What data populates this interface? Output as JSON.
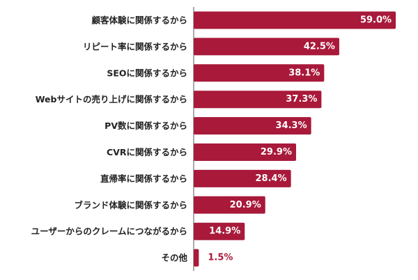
{
  "chart_data": {
    "type": "bar",
    "orientation": "horizontal",
    "categories": [
      "顧客体験に関係するから",
      "リピート率に関係するから",
      "SEOに関係するから",
      "Webサイトの売り上げに関係するから",
      "PV数に関係するから",
      "CVRに関係するから",
      "直帰率に関係するから",
      "ブランド体験に関係するから",
      "ユーザーからのクレームにつながるから",
      "その他"
    ],
    "values": [
      59.0,
      42.5,
      38.1,
      37.3,
      34.3,
      29.9,
      28.4,
      20.9,
      14.9,
      1.5
    ],
    "value_labels": [
      "59.0%",
      "42.5%",
      "38.1%",
      "37.3%",
      "34.3%",
      "29.9%",
      "28.4%",
      "20.9%",
      "14.9%",
      "1.5%"
    ],
    "unit": "%",
    "title": "",
    "xlabel": "",
    "ylabel": "",
    "xlim": [
      0,
      60
    ],
    "grid": false,
    "legend": "none",
    "colors": {
      "bar": "#a8193a",
      "label_inside": "#ffffff",
      "label_outside": "#a8193a",
      "category_text": "#222222",
      "axis_line": "#555555"
    }
  }
}
